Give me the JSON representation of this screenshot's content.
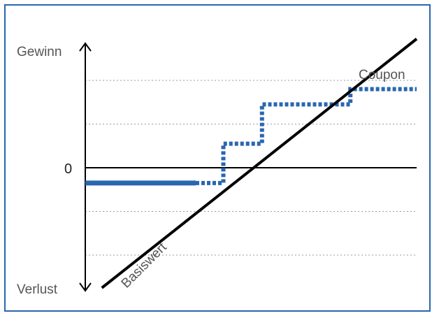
{
  "chart_data": {
    "type": "line",
    "title": "",
    "axis_labels": {
      "y_top": "Gewinn",
      "y_bottom": "Verlust",
      "zero": "0"
    },
    "series": [
      {
        "name": "Basiswert",
        "style": "solid",
        "color": "#000000",
        "x": [
          0.15,
          3.0
        ],
        "y": [
          -2.75,
          2.95
        ]
      },
      {
        "name": "Coupon",
        "style": "stepped, solid segment below break-even then dotted",
        "color": "#2a66b0",
        "x": [
          0.0,
          1.0,
          1.25,
          1.25,
          1.6,
          1.6,
          2.0,
          2.0,
          2.4,
          2.4,
          3.0
        ],
        "y": [
          -0.35,
          -0.35,
          -0.35,
          0.55,
          0.55,
          1.45,
          1.45,
          1.45,
          1.45,
          1.8,
          1.8
        ]
      }
    ],
    "gridlines_y": [
      2,
      1,
      -1,
      -2
    ],
    "grid": "dotted horizontal",
    "xlim": [
      0,
      3
    ],
    "ylim": [
      -2.8,
      2.8
    ]
  }
}
